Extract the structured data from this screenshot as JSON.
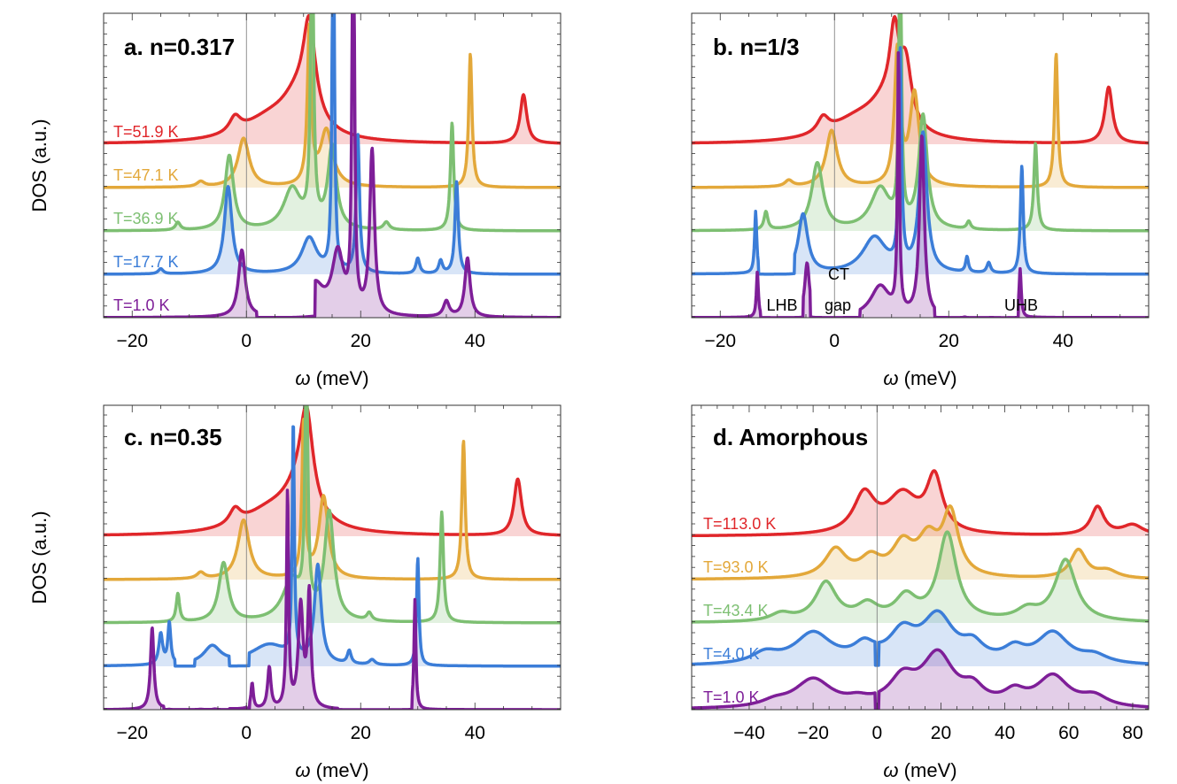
{
  "colors": {
    "red": "#e0262a",
    "orange": "#e3a83a",
    "green": "#7dbf72",
    "blue": "#3b7dd8",
    "purple": "#7e1e98"
  },
  "ylabel": "DOS (a.u.)",
  "chart_data": [
    {
      "type": "line",
      "panel": "a",
      "title": "a. n=0.317",
      "xlabel": "ω (meV)",
      "ylabel": "DOS (a.u.)",
      "xlim": [
        -25,
        55
      ],
      "xticks": [
        -20,
        0,
        20,
        40
      ],
      "series": [
        {
          "name": "T=51.9 K",
          "color": "red",
          "baseline": 4,
          "peaks": [
            [
              -2,
              0.3,
              1.2
            ],
            [
              4,
              0.4,
              6
            ],
            [
              11,
              1.8,
              1.3
            ],
            [
              9,
              0.7,
              3.5
            ],
            [
              48.5,
              0.95,
              0.7
            ]
          ]
        },
        {
          "name": "T=47.1 K",
          "color": "orange",
          "baseline": 3,
          "peaks": [
            [
              -8,
              0.1,
              0.8
            ],
            [
              -0.5,
              0.95,
              1.2
            ],
            [
              11,
              3.0,
              0.4
            ],
            [
              14,
              1.1,
              1.3
            ],
            [
              39.2,
              2.6,
              0.35
            ]
          ]
        },
        {
          "name": "T=36.9 K",
          "color": "green",
          "baseline": 2,
          "peaks": [
            [
              -12,
              0.15,
              0.5
            ],
            [
              -3,
              1.45,
              0.9
            ],
            [
              8,
              0.8,
              1.8
            ],
            [
              11.5,
              6.0,
              0.3
            ],
            [
              15,
              1.6,
              0.9
            ],
            [
              24.5,
              0.15,
              0.6
            ],
            [
              36,
              2.1,
              0.35
            ]
          ]
        },
        {
          "name": "T=17.7 K",
          "color": "blue",
          "baseline": 1,
          "peaks": [
            [
              -15,
              0.1,
              0.5
            ],
            [
              -3.2,
              1.7,
              0.8
            ],
            [
              11,
              0.7,
              1.6
            ],
            [
              15.2,
              8.0,
              0.22
            ],
            [
              19.5,
              2.7,
              0.35
            ],
            [
              30,
              0.3,
              0.4
            ],
            [
              34,
              0.25,
              0.4
            ],
            [
              36.8,
              1.8,
              0.35
            ]
          ]
        },
        {
          "name": "T=1.0 K",
          "color": "purple",
          "baseline": 0,
          "peaks": [
            [
              -0.8,
              1.3,
              0.7
            ],
            [
              12,
              0.6,
              1.8
            ],
            [
              16,
              1.2,
              1.2
            ],
            [
              18.7,
              11.0,
              0.2
            ],
            [
              22,
              3.2,
              0.5
            ],
            [
              35,
              0.3,
              0.6
            ],
            [
              38.7,
              1.15,
              0.55
            ]
          ],
          "gaps": [
            [
              1.8,
              12
            ]
          ]
        }
      ]
    },
    {
      "type": "line",
      "panel": "b",
      "title": "b. n=1/3",
      "xlabel": "ω (meV)",
      "ylabel": "DOS (a.u.)",
      "xlim": [
        -25,
        55
      ],
      "xticks": [
        -20,
        0,
        20,
        40
      ],
      "annotations": [
        "CT",
        "gap",
        "LHB",
        "UHB"
      ],
      "series": [
        {
          "name": "T=51.9 K",
          "color": "red",
          "baseline": 4,
          "peaks": [
            [
              -2,
              0.3,
              1.2
            ],
            [
              4,
              0.4,
              6
            ],
            [
              10.5,
              1.5,
              1.0
            ],
            [
              12.5,
              1.1,
              1.2
            ],
            [
              9,
              0.6,
              3.5
            ],
            [
              48,
              1.1,
              0.8
            ]
          ]
        },
        {
          "name": "T=47.1 K",
          "color": "orange",
          "baseline": 3,
          "peaks": [
            [
              -8,
              0.12,
              0.8
            ],
            [
              -0.5,
              1.1,
              1.2
            ],
            [
              11,
              2.6,
              0.6
            ],
            [
              14,
              1.8,
              1.0
            ],
            [
              38.8,
              2.6,
              0.35
            ]
          ]
        },
        {
          "name": "T=36.9 K",
          "color": "green",
          "baseline": 2,
          "peaks": [
            [
              -12,
              0.35,
              0.4
            ],
            [
              -3,
              1.3,
              1.2
            ],
            [
              8,
              0.8,
              2.0
            ],
            [
              11.5,
              6.0,
              0.25
            ],
            [
              15.5,
              2.2,
              0.9
            ],
            [
              23.5,
              0.15,
              0.4
            ],
            [
              35.2,
              1.7,
              0.35
            ]
          ]
        },
        {
          "name": "T=17.7 K",
          "color": "blue",
          "baseline": 1,
          "peaks": [
            [
              -13.8,
              1.2,
              0.22
            ],
            [
              -5.5,
              1.15,
              1.0
            ],
            [
              7,
              0.7,
              2.5
            ],
            [
              11.5,
              4.2,
              0.28
            ],
            [
              15.5,
              2.7,
              0.8
            ],
            [
              23.2,
              0.3,
              0.3
            ],
            [
              27,
              0.2,
              0.4
            ],
            [
              32.8,
              2.1,
              0.3
            ]
          ],
          "gaps": [
            [
              -13.3,
              -7
            ]
          ]
        },
        {
          "name": "T=1.0 K",
          "color": "purple",
          "baseline": 0,
          "peaks": [
            [
              -13.5,
              0.9,
              0.2
            ],
            [
              -4.8,
              1.05,
              0.5
            ],
            [
              8,
              0.6,
              2.0
            ],
            [
              11.2,
              5.0,
              0.2
            ],
            [
              15.3,
              3.5,
              0.5
            ],
            [
              22.8,
              0.35,
              0.25
            ],
            [
              27.5,
              0.1,
              0.4
            ],
            [
              32.5,
              0.95,
              0.22
            ]
          ],
          "gaps": [
            [
              -13,
              -5.5
            ],
            [
              -4.2,
              4.5
            ],
            [
              17.5,
              32.2
            ]
          ]
        }
      ]
    },
    {
      "type": "line",
      "panel": "c",
      "title": "c. n=0.35",
      "xlabel": "ω (meV)",
      "ylabel": "DOS (a.u.)",
      "xlim": [
        -25,
        55
      ],
      "xticks": [
        -20,
        0,
        20,
        40
      ],
      "series": [
        {
          "name": "T=51.9 K",
          "color": "red",
          "baseline": 4,
          "peaks": [
            [
              -2,
              0.3,
              1.2
            ],
            [
              4,
              0.4,
              6
            ],
            [
              10.5,
              1.85,
              1.4
            ],
            [
              9,
              0.6,
              3.5
            ],
            [
              47.5,
              1.1,
              0.8
            ]
          ]
        },
        {
          "name": "T=47.1 K",
          "color": "orange",
          "baseline": 3,
          "peaks": [
            [
              -8,
              0.12,
              0.8
            ],
            [
              -0.5,
              1.15,
              1.2
            ],
            [
              10,
              3.0,
              0.35
            ],
            [
              13.5,
              1.6,
              1.0
            ],
            [
              38,
              2.7,
              0.35
            ]
          ]
        },
        {
          "name": "T=36.9 K",
          "color": "green",
          "baseline": 2,
          "peaks": [
            [
              -12,
              0.55,
              0.35
            ],
            [
              -4,
              1.15,
              1.0
            ],
            [
              8,
              0.8,
              2.0
            ],
            [
              10.5,
              4.8,
              0.3
            ],
            [
              14.5,
              2.1,
              1.0
            ],
            [
              21.5,
              0.15,
              0.5
            ],
            [
              34.2,
              2.15,
              0.35
            ]
          ]
        },
        {
          "name": "T=17.7 K",
          "color": "blue",
          "baseline": 1,
          "peaks": [
            [
              -15,
              0.6,
              0.4
            ],
            [
              -13.5,
              0.8,
              0.3
            ],
            [
              -6,
              0.35,
              1.8
            ],
            [
              4,
              0.4,
              4
            ],
            [
              8.2,
              4.6,
              0.22
            ],
            [
              12.5,
              1.9,
              0.7
            ],
            [
              18,
              0.25,
              0.4
            ],
            [
              22,
              0.1,
              0.6
            ],
            [
              30,
              2.1,
              0.25
            ]
          ],
          "gaps": [
            [
              -12.5,
              -9
            ],
            [
              -3,
              0.5
            ]
          ]
        },
        {
          "name": "T=1.0 K",
          "color": "purple",
          "baseline": 0,
          "peaks": [
            [
              -16.5,
              1.6,
              0.35
            ],
            [
              -13.5,
              0.2,
              0.3
            ],
            [
              -8,
              0.2,
              0.6
            ],
            [
              -5.5,
              0.35,
              0.4
            ],
            [
              1,
              0.5,
              0.25
            ],
            [
              4,
              0.8,
              0.35
            ],
            [
              7.2,
              4.2,
              0.22
            ],
            [
              9.5,
              2.0,
              0.5
            ],
            [
              11,
              2.2,
              0.35
            ],
            [
              29.5,
              2.15,
              0.2
            ]
          ],
          "gaps": [
            [
              -14.5,
              -3
            ],
            [
              0,
              0.6
            ],
            [
              16,
              29
            ]
          ]
        }
      ]
    },
    {
      "type": "line",
      "panel": "d",
      "title": "d. Amorphous",
      "xlabel": "ω (meV)",
      "ylabel": "DOS (a.u.)",
      "xlim": [
        -58,
        85
      ],
      "xticks": [
        -40,
        -20,
        0,
        20,
        40,
        60,
        80
      ],
      "series": [
        {
          "name": "T=113.0 K",
          "color": "red",
          "baseline": 4,
          "peaks": [
            [
              -4,
              0.75,
              4
            ],
            [
              8,
              0.75,
              6
            ],
            [
              18,
              1.05,
              3
            ],
            [
              69,
              0.55,
              2.5
            ],
            [
              80,
              0.2,
              4
            ]
          ]
        },
        {
          "name": "T=93.0 K",
          "color": "orange",
          "baseline": 3,
          "peaks": [
            [
              -13,
              0.55,
              4
            ],
            [
              -2,
              0.35,
              4
            ],
            [
              8,
              0.6,
              4
            ],
            [
              16,
              0.7,
              4
            ],
            [
              23,
              1.2,
              3
            ],
            [
              63,
              0.55,
              3
            ],
            [
              72,
              0.15,
              4
            ]
          ]
        },
        {
          "name": "T=43.4 K",
          "color": "green",
          "baseline": 2,
          "peaks": [
            [
              -30,
              0.15,
              4
            ],
            [
              -16,
              0.75,
              4
            ],
            [
              -3,
              0.3,
              4
            ],
            [
              9,
              0.45,
              4
            ],
            [
              22,
              1.7,
              3.5
            ],
            [
              47,
              0.2,
              4
            ],
            [
              59,
              1.2,
              4
            ]
          ]
        },
        {
          "name": "T=4.0 K",
          "color": "blue",
          "baseline": 1,
          "peaks": [
            [
              -35,
              0.2,
              5
            ],
            [
              -20,
              0.6,
              7
            ],
            [
              -4,
              0.3,
              4
            ],
            [
              8,
              0.55,
              5
            ],
            [
              19,
              0.9,
              6
            ],
            [
              30,
              0.3,
              4
            ],
            [
              43,
              0.25,
              4
            ],
            [
              55,
              0.6,
              6
            ],
            [
              68,
              0.15,
              5
            ]
          ],
          "gaps": [
            [
              -0.5,
              0.5
            ]
          ]
        },
        {
          "name": "T=1.0 K",
          "color": "purple",
          "baseline": 0,
          "peaks": [
            [
              -32,
              0.1,
              5
            ],
            [
              -20,
              0.55,
              7
            ],
            [
              -6,
              0.1,
              4
            ],
            [
              8,
              0.5,
              5
            ],
            [
              19,
              1.0,
              6
            ],
            [
              30,
              0.3,
              4
            ],
            [
              43,
              0.25,
              4
            ],
            [
              55,
              0.6,
              6
            ],
            [
              68,
              0.2,
              5
            ]
          ],
          "gaps": [
            [
              -0.5,
              0.5
            ]
          ]
        }
      ]
    }
  ]
}
